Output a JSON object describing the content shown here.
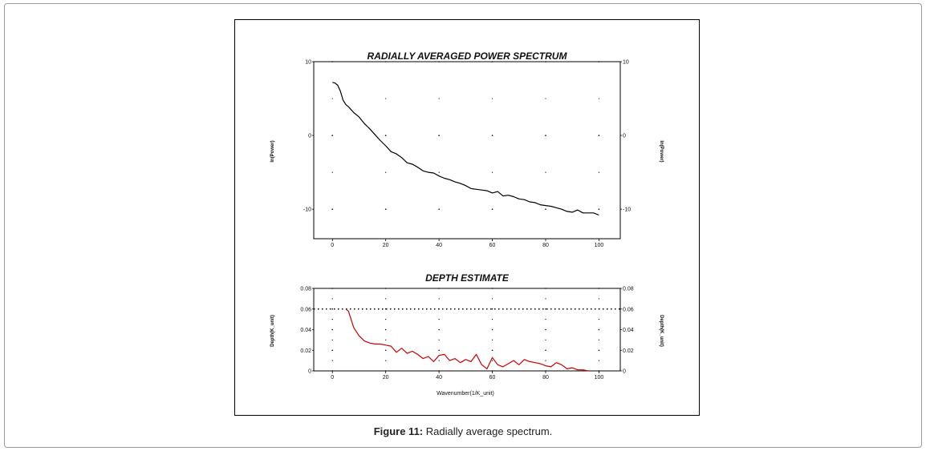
{
  "caption": {
    "label": "Figure 11:",
    "text": " Radially average spectrum."
  },
  "chart_data": [
    {
      "type": "line",
      "title": "RADIALLY AVERAGED POWER SPECTRUM",
      "ylabel": "ln(Power)",
      "ylabel_right": "ln(Power)",
      "xlim": [
        -7,
        108
      ],
      "ylim": [
        -14,
        10
      ],
      "xticks": [
        0,
        20,
        40,
        60,
        80,
        100
      ],
      "yticks": [
        10,
        0,
        -10
      ],
      "grid": "dotted",
      "line_color": "#000000",
      "series": [
        {
          "x": [
            0,
            1,
            2,
            3,
            4,
            5,
            6,
            8,
            10,
            12,
            14,
            16,
            18,
            20,
            22,
            24,
            26,
            28,
            30,
            32,
            34,
            36,
            38,
            40,
            42,
            44,
            46,
            48,
            50,
            52,
            54,
            56,
            58,
            60,
            62,
            64,
            66,
            68,
            70,
            72,
            74,
            76,
            78,
            80,
            82,
            84,
            86,
            88,
            90,
            92,
            94,
            96,
            98,
            100
          ],
          "y": [
            7.2,
            7.1,
            6.8,
            6.0,
            4.8,
            4.2,
            3.9,
            3.1,
            2.5,
            1.6,
            0.9,
            0.1,
            -0.7,
            -1.4,
            -2.2,
            -2.5,
            -3.0,
            -3.7,
            -3.9,
            -4.3,
            -4.8,
            -5.0,
            -5.1,
            -5.5,
            -5.8,
            -6.0,
            -6.3,
            -6.5,
            -6.8,
            -7.2,
            -7.3,
            -7.4,
            -7.5,
            -7.8,
            -7.6,
            -8.2,
            -8.1,
            -8.3,
            -8.6,
            -8.7,
            -9.0,
            -9.1,
            -9.4,
            -9.5,
            -9.6,
            -9.8,
            -10.0,
            -10.3,
            -10.4,
            -10.1,
            -10.5,
            -10.5,
            -10.5,
            -10.8
          ]
        }
      ]
    },
    {
      "type": "line",
      "title": "DEPTH ESTIMATE",
      "xlabel": "Wavenumber(1/K_unit)",
      "ylabel": "Depth(K_unit)",
      "ylabel_right": "Depth(K_unit)",
      "xlim": [
        -7,
        108
      ],
      "ylim": [
        0,
        0.08
      ],
      "xticks": [
        0,
        20,
        40,
        60,
        80,
        100
      ],
      "yticks": [
        "0",
        "0.02",
        "0.04",
        "0.06",
        "0.08"
      ],
      "ytick_values": [
        0,
        0.02,
        0.04,
        0.06,
        0.08
      ],
      "grid": "dotted",
      "reference_line": 0.06,
      "line_color": "#cc0000",
      "series": [
        {
          "x": [
            5,
            6,
            7,
            8,
            10,
            12,
            14,
            16,
            18,
            20,
            22,
            24,
            26,
            28,
            30,
            32,
            34,
            36,
            38,
            40,
            42,
            44,
            46,
            48,
            50,
            52,
            54,
            56,
            58,
            60,
            62,
            64,
            66,
            68,
            70,
            72,
            74,
            76,
            78,
            80,
            82,
            84,
            86,
            88,
            90,
            92,
            94,
            96
          ],
          "y": [
            0.06,
            0.058,
            0.05,
            0.042,
            0.034,
            0.029,
            0.027,
            0.026,
            0.026,
            0.025,
            0.024,
            0.018,
            0.022,
            0.017,
            0.019,
            0.016,
            0.012,
            0.014,
            0.009,
            0.015,
            0.016,
            0.01,
            0.012,
            0.008,
            0.011,
            0.009,
            0.016,
            0.006,
            0.002,
            0.013,
            0.006,
            0.004,
            0.007,
            0.01,
            0.006,
            0.011,
            0.009,
            0.008,
            0.007,
            0.005,
            0.004,
            0.008,
            0.006,
            0.002,
            0.003,
            0.001,
            0.001,
            0.0
          ]
        }
      ]
    }
  ]
}
